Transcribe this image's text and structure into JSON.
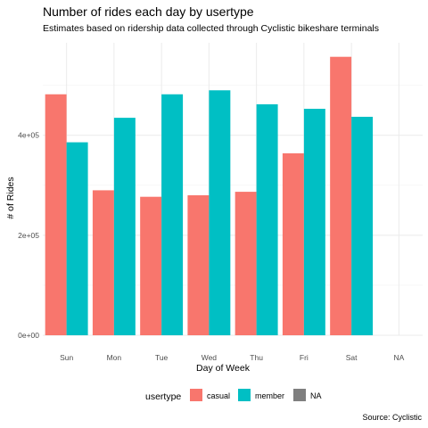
{
  "chart_data": {
    "type": "bar",
    "title": "Number of rides each day by usertype",
    "subtitle": "Estimates based on ridership data collected through Cyclistic bikeshare terminals",
    "caption": "Source: Cyclistic",
    "xlabel": "Day of Week",
    "ylabel": "# of Rides",
    "categories": [
      "Sun",
      "Mon",
      "Tue",
      "Wed",
      "Thu",
      "Fri",
      "Sat",
      "NA"
    ],
    "series": [
      {
        "name": "casual",
        "color": "#F8766D",
        "values": [
          482000,
          290000,
          277000,
          280000,
          287000,
          364000,
          557000,
          null
        ]
      },
      {
        "name": "member",
        "color": "#00BFC4",
        "values": [
          386000,
          435000,
          482000,
          490000,
          462000,
          453000,
          437000,
          null
        ]
      },
      {
        "name": "NA",
        "color": "#7F7F7F",
        "values": [
          null,
          null,
          null,
          null,
          null,
          null,
          null,
          null
        ]
      }
    ],
    "yticks": [
      0,
      200000,
      400000
    ],
    "ytick_labels": [
      "0e+00",
      "2e+05",
      "4e+05"
    ],
    "ylim": [
      0,
      585000
    ],
    "grid": true,
    "legend": {
      "title": "usertype",
      "position": "bottom",
      "labels": [
        "casual",
        "member",
        "NA"
      ]
    }
  }
}
